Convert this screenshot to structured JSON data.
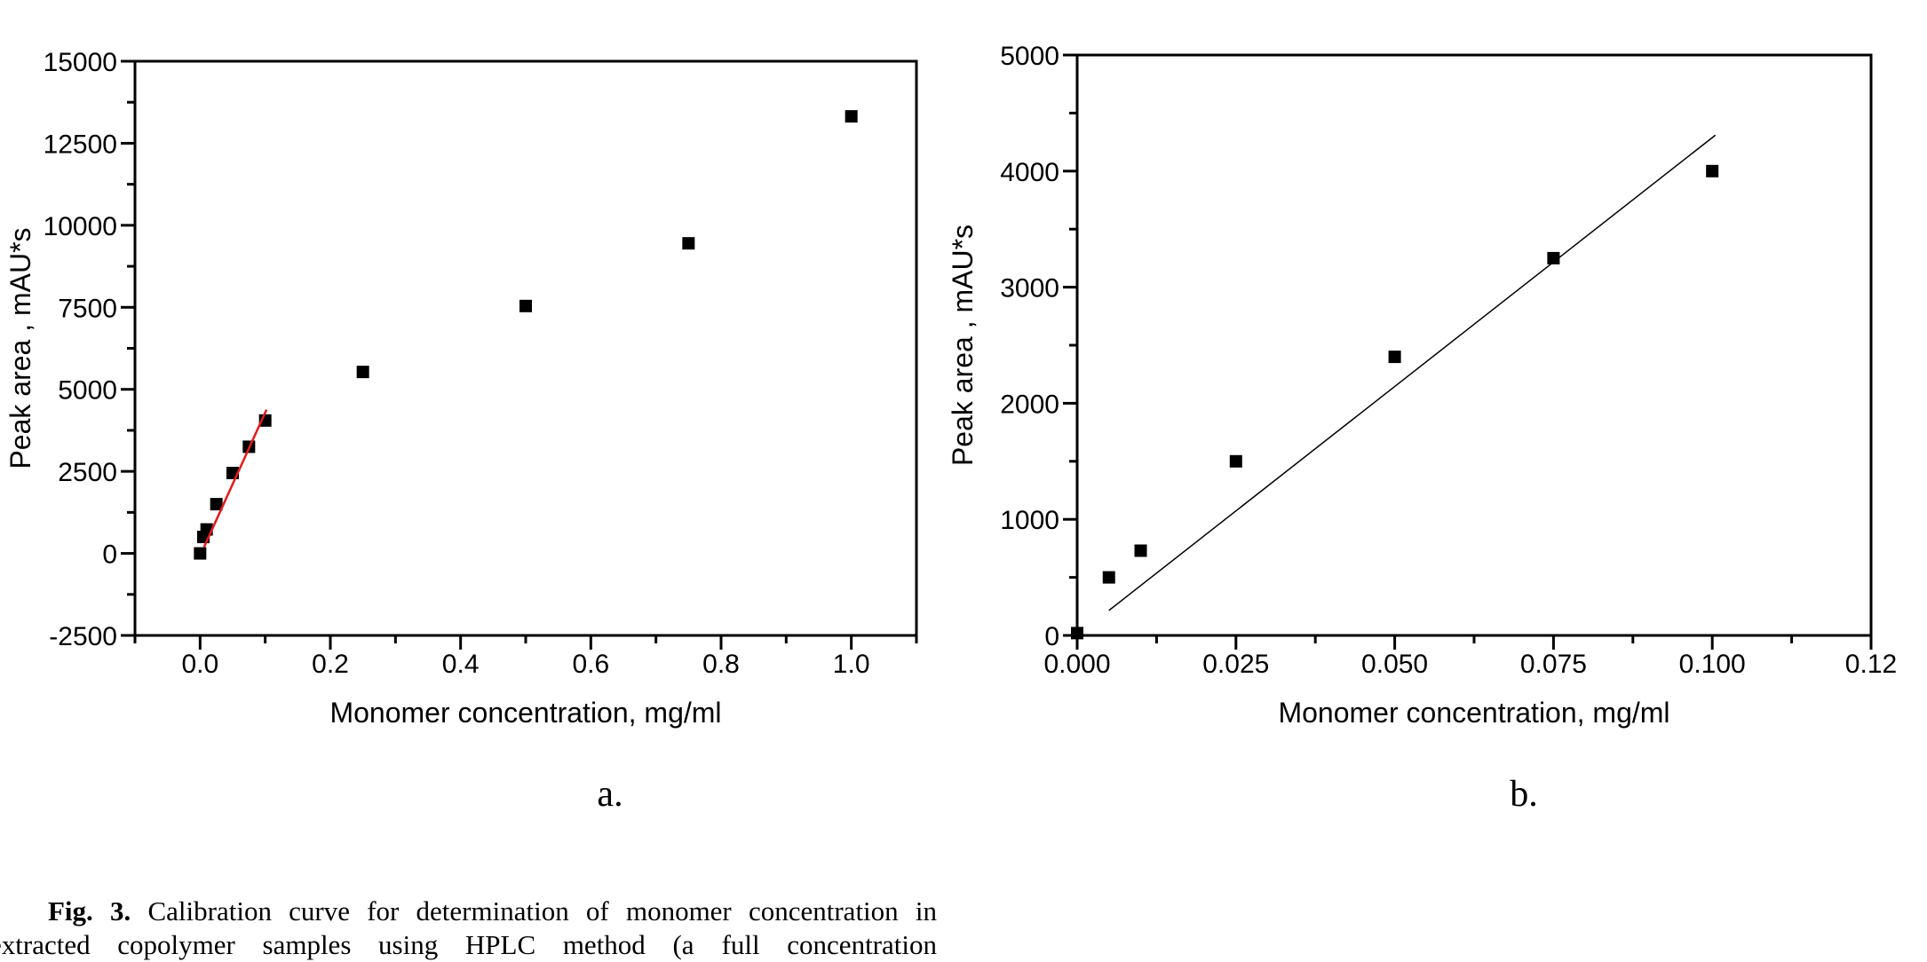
{
  "figure": {
    "panel_a_label": "a.",
    "panel_b_label": "b.",
    "caption": {
      "bold_prefix": "Fig. 3.",
      "line1_rest": " Calibration curve for determination of monomer concentration in",
      "line2": "extracted copolymer samples using HPLC method (a  full concentration"
    }
  },
  "chart_data": [
    {
      "id": "a",
      "type": "scatter",
      "title": "",
      "xlabel": "Monomer concentration, mg/ml",
      "ylabel": "Peak area , mAU*s",
      "xlim": [
        -0.1,
        1.1
      ],
      "ylim": [
        -2500,
        15000
      ],
      "grid": false,
      "legend": "none",
      "x_ticks": {
        "values": [
          0.0,
          0.2,
          0.4,
          0.6,
          0.8,
          1.0
        ],
        "labels": [
          "0.0",
          "0.2",
          "0.4",
          "0.6",
          "0.8",
          "1.0"
        ],
        "minor_step": 0.1
      },
      "y_ticks": {
        "values": [
          -2500,
          0,
          2500,
          5000,
          7500,
          10000,
          12500,
          15000
        ],
        "labels": [
          "-2500",
          "0",
          "2500",
          "5000",
          "7500",
          "10000",
          "12500",
          "15000"
        ],
        "minor_step": 1250
      },
      "marker": {
        "shape": "square",
        "size": 14,
        "color": "#000000"
      },
      "points": [
        [
          0.0,
          0
        ],
        [
          0.005,
          500
        ],
        [
          0.01,
          730
        ],
        [
          0.025,
          1500
        ],
        [
          0.05,
          2450
        ],
        [
          0.075,
          3250
        ],
        [
          0.1,
          4050
        ],
        [
          0.25,
          5530
        ],
        [
          0.5,
          7540
        ],
        [
          0.75,
          9450
        ],
        [
          1.0,
          13320
        ]
      ],
      "fit_line": {
        "x1": 0.006,
        "y1": 190,
        "x2": 0.102,
        "y2": 4380,
        "color": "#e01b1b",
        "width": 2.5
      }
    },
    {
      "id": "b",
      "type": "scatter",
      "title": "",
      "xlabel": "Monomer concentration, mg/ml",
      "ylabel": "Peak area , mAU*s",
      "xlim": [
        0,
        0.125
      ],
      "ylim": [
        0,
        5000
      ],
      "grid": false,
      "legend": "none",
      "x_ticks": {
        "values": [
          0,
          0.025,
          0.05,
          0.075,
          0.1,
          0.125
        ],
        "labels": [
          "0.000",
          "0.025",
          "0.050",
          "0.075",
          "0.100",
          "0.12"
        ],
        "minor_step": 0.0125
      },
      "y_ticks": {
        "values": [
          0,
          1000,
          2000,
          3000,
          4000,
          5000
        ],
        "labels": [
          "0",
          "1000",
          "2000",
          "3000",
          "4000",
          "5000"
        ],
        "minor_step": 500
      },
      "marker": {
        "shape": "square",
        "size": 14,
        "color": "#000000"
      },
      "points": [
        [
          0.0,
          20
        ],
        [
          0.005,
          500
        ],
        [
          0.01,
          730
        ],
        [
          0.025,
          1500
        ],
        [
          0.05,
          2400
        ],
        [
          0.075,
          3250
        ],
        [
          0.1,
          4000
        ]
      ],
      "fit_line": {
        "x1": 0.005,
        "y1": 215,
        "x2": 0.1005,
        "y2": 4310,
        "color": "#000000",
        "width": 1.5
      }
    }
  ]
}
